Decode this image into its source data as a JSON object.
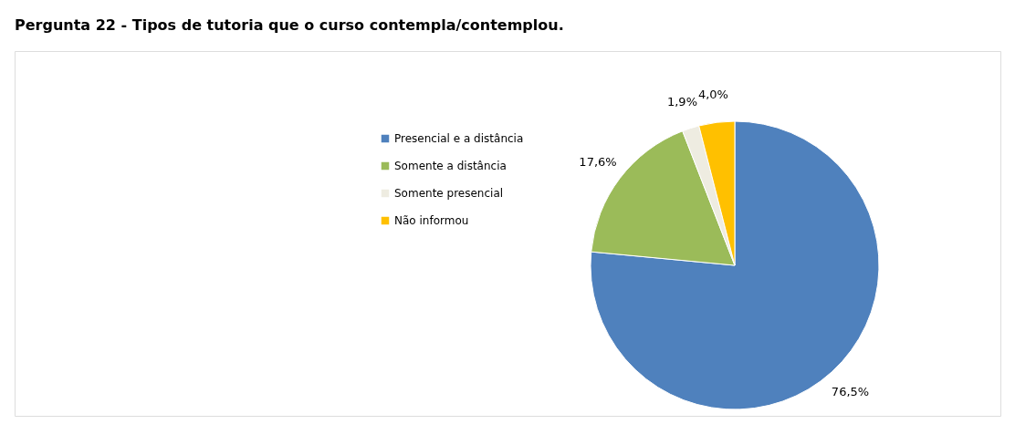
{
  "chart_data": {
    "type": "pie",
    "title": "Pergunta 22 - Tipos de tutoria que o curso contempla/contemplou.",
    "categories": [
      "Presencial e a distância",
      "Somente a distância",
      "Somente presencial",
      "Não informou"
    ],
    "values": [
      76.5,
      17.6,
      1.9,
      4.0
    ],
    "colors": [
      "#4f81bd",
      "#9bbb59",
      "#eeece1",
      "#ffc000"
    ],
    "value_labels": [
      "76,5%",
      "17,6%",
      "1,9%",
      "4,0%"
    ],
    "legend": "left"
  }
}
